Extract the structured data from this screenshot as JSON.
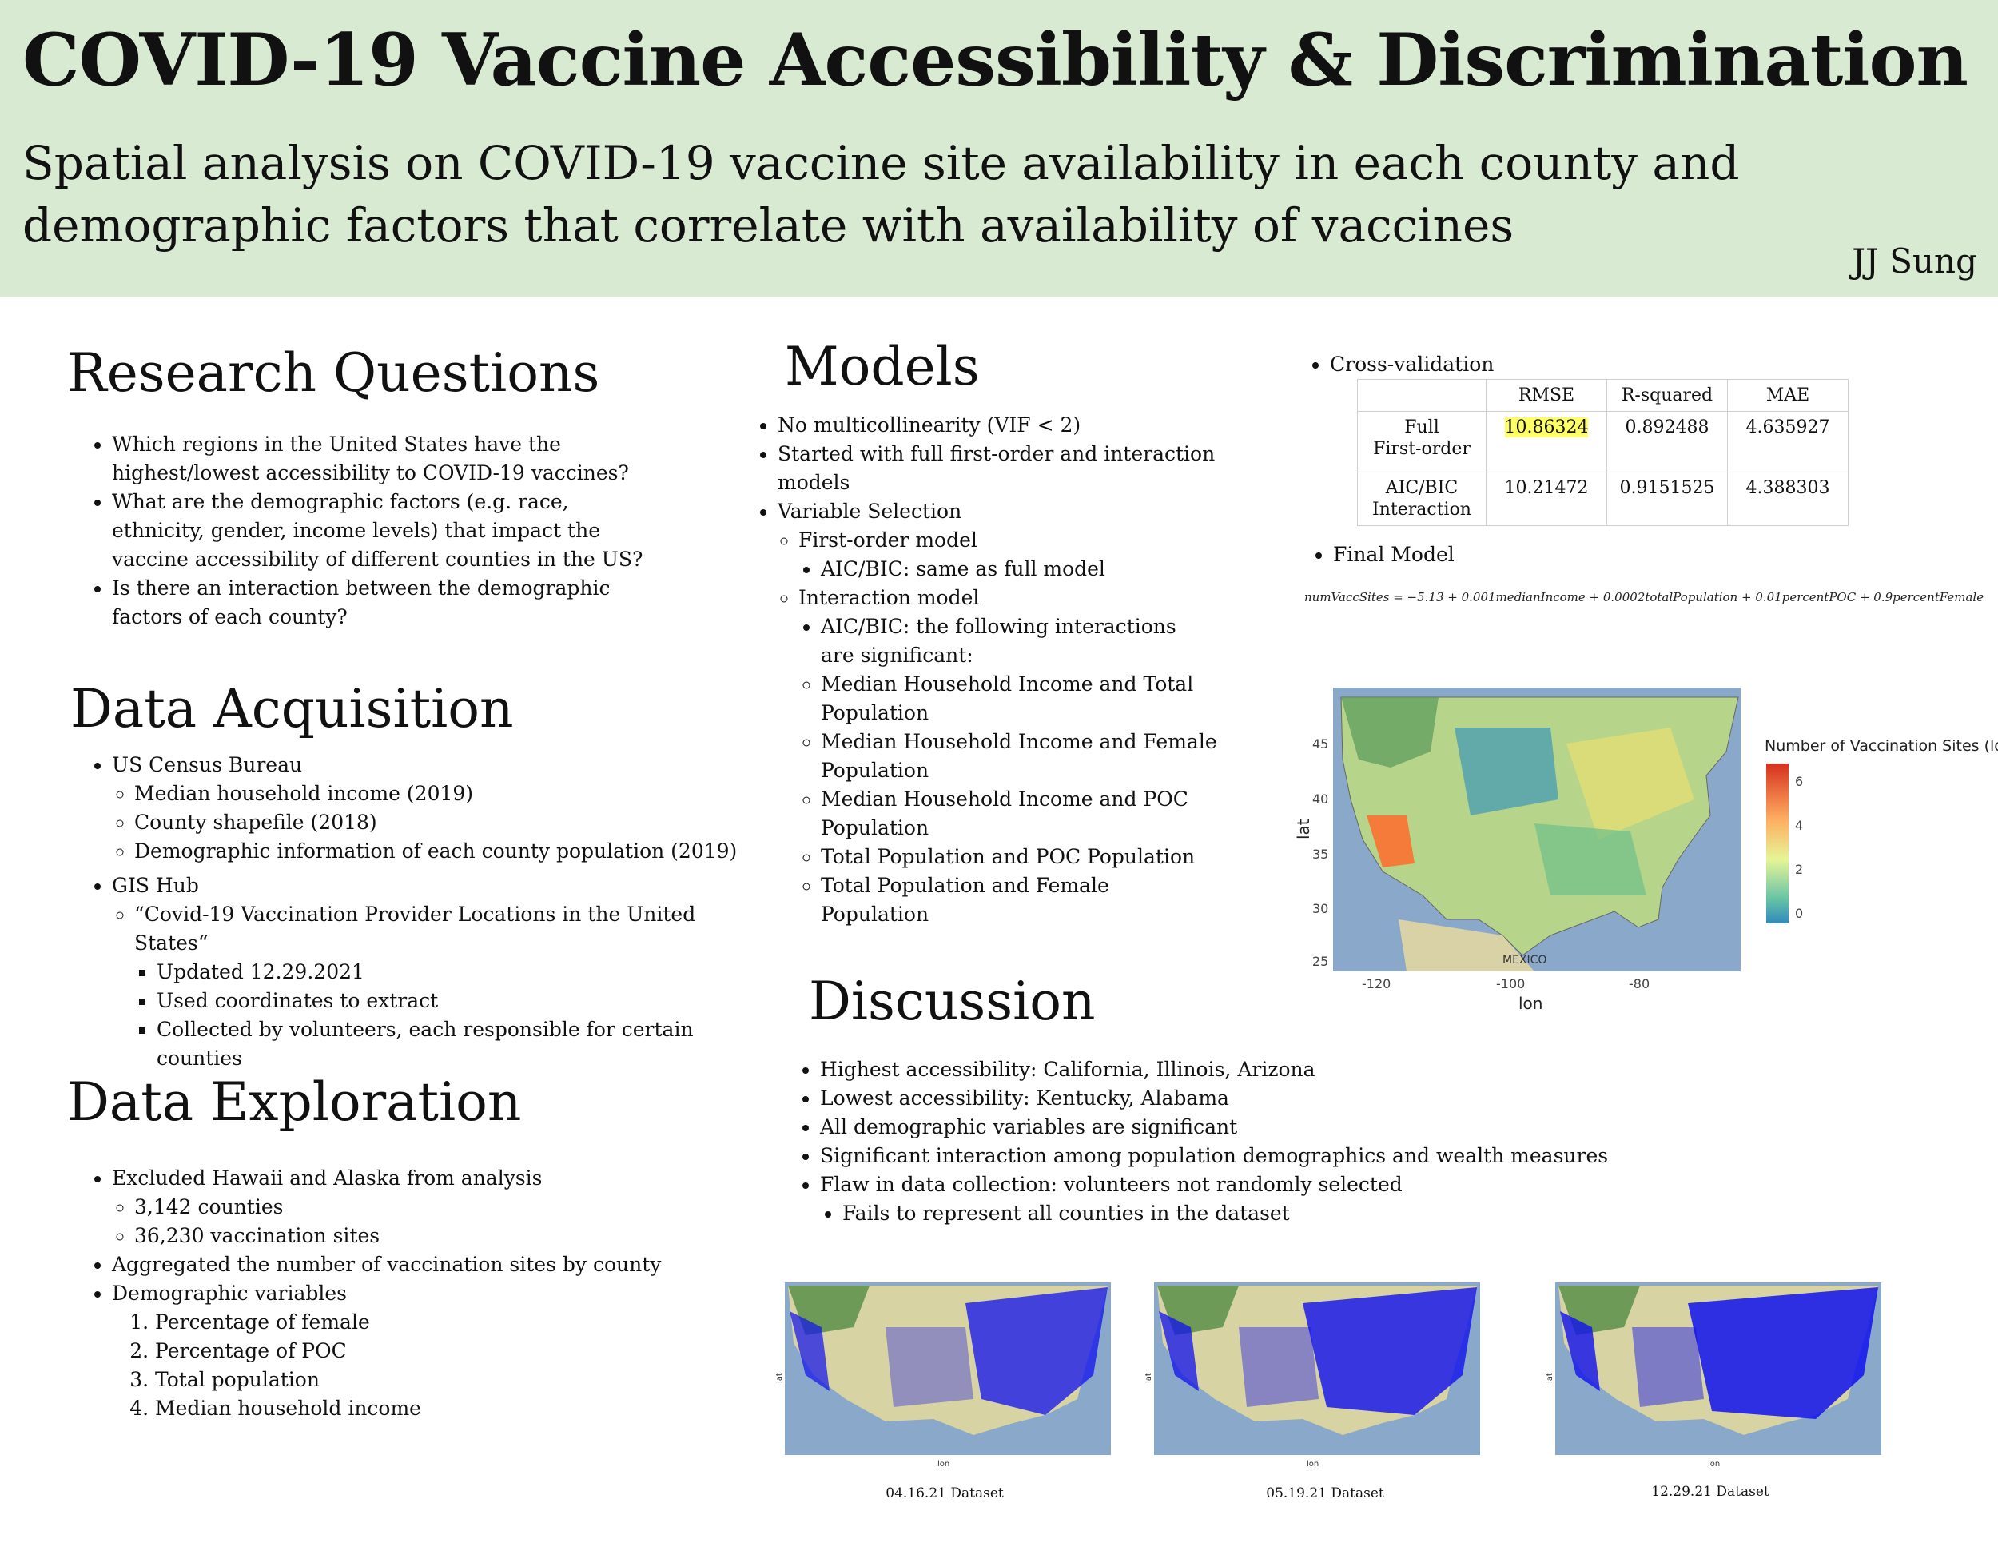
{
  "header": {
    "title": "COVID-19 Vaccine Accessibility & Discrimination",
    "subtitle_line1": "Spatial analysis on COVID-19 vaccine site availability in each county and",
    "subtitle_line2": "demographic factors that correlate with availability of vaccines",
    "author": "JJ Sung"
  },
  "research": {
    "title": "Research Questions",
    "items": [
      "Which regions in the United States have the highest/lowest  accessibility to COVID-19 vaccines?",
      "What are the demographic factors (e.g. race, ethnicity, gender, income levels) that impact the vaccine accessibility of different counties in the US?",
      "Is there an interaction between the demographic factors of each county?"
    ]
  },
  "acquisition": {
    "title": "Data Acquisition",
    "census": "US Census Bureau",
    "census_items": [
      "Median household income (2019)",
      "County shapefile (2018)",
      "Demographic information of each county population (2019)"
    ],
    "gis": "GIS Hub",
    "gis_item": "“Covid-19 Vaccination Provider Locations in the United States“",
    "gis_sub": [
      "Updated 12.29.2021",
      "Used coordinates to extract",
      "Collected by volunteers, each responsible for certain counties"
    ]
  },
  "exploration": {
    "title": "Data Exploration",
    "excluded": "Excluded Hawaii and Alaska from analysis",
    "excluded_sub": [
      "3,142 counties",
      "36,230 vaccination sites"
    ],
    "aggregated": "Aggregated the number of vaccination sites by county",
    "demographic": "Demographic variables",
    "demographic_list": [
      "Percentage of female",
      "Percentage of POC",
      "Total population",
      "Median household income"
    ]
  },
  "models": {
    "title": "Models",
    "item1": "No multicollinearity (VIF < 2)",
    "item2": "Started with full first-order and interaction models",
    "item3": "Variable Selection",
    "first_order": "First-order model",
    "first_order_sub": "AIC/BIC: same as full model",
    "interaction": "Interaction model",
    "interaction_sub": "AIC/BIC: the following interactions are significant:",
    "interactions": [
      "Median Household Income and Total Population",
      "Median Household Income and Female Population",
      "Median Household Income and POC Population",
      "Total Population and POC Population",
      "Total Population and Female Population"
    ]
  },
  "cv": {
    "label": "Cross-validation",
    "headers": [
      "RMSE",
      "R-squared",
      "MAE"
    ],
    "rows": [
      {
        "name1": "Full",
        "name2": "First-order",
        "rmse": "10.86324",
        "r2": "0.892488",
        "mae": "4.635927"
      },
      {
        "name1": "AIC/BIC",
        "name2": "Interaction",
        "rmse": "10.21472",
        "r2": "0.9151525",
        "mae": "4.388303"
      }
    ],
    "final_label": "Final Model",
    "equation": "numVaccSites = −5.13 + 0.001medianIncome + 0.0002totalPopulation + 0.01percentPOC + 0.9percentFemale"
  },
  "choropleth": {
    "legend_title": "Number of Vaccination Sites (log)",
    "legend_ticks": [
      "6",
      "4",
      "2",
      "0"
    ],
    "y_label": "lat",
    "x_label": "lon",
    "y_ticks": [
      "45",
      "40",
      "35",
      "30",
      "25"
    ],
    "x_ticks": [
      "-120",
      "-100",
      "-80"
    ],
    "map_text": "MEXICO"
  },
  "discussion": {
    "title": "Discussion",
    "items": [
      "Highest accessibility: California, Illinois, Arizona",
      "Lowest accessibility: Kentucky, Alabama",
      "All demographic variables are significant",
      "Significant interaction among population demographics and wealth measures",
      "Flaw in data collection: volunteers not randomly selected"
    ],
    "sub": "Fails to represent all counties in the dataset"
  },
  "maps": {
    "captions": [
      "04.16.21 Dataset",
      "05.19.21 Dataset",
      "12.29.21 Dataset"
    ],
    "y_label": "lat",
    "x_label": "lon"
  },
  "colors": {
    "header_bg": "#d9ead3",
    "highlight": "#ffff66",
    "ocean": "#8aa8c9",
    "points": "#1010ee"
  }
}
